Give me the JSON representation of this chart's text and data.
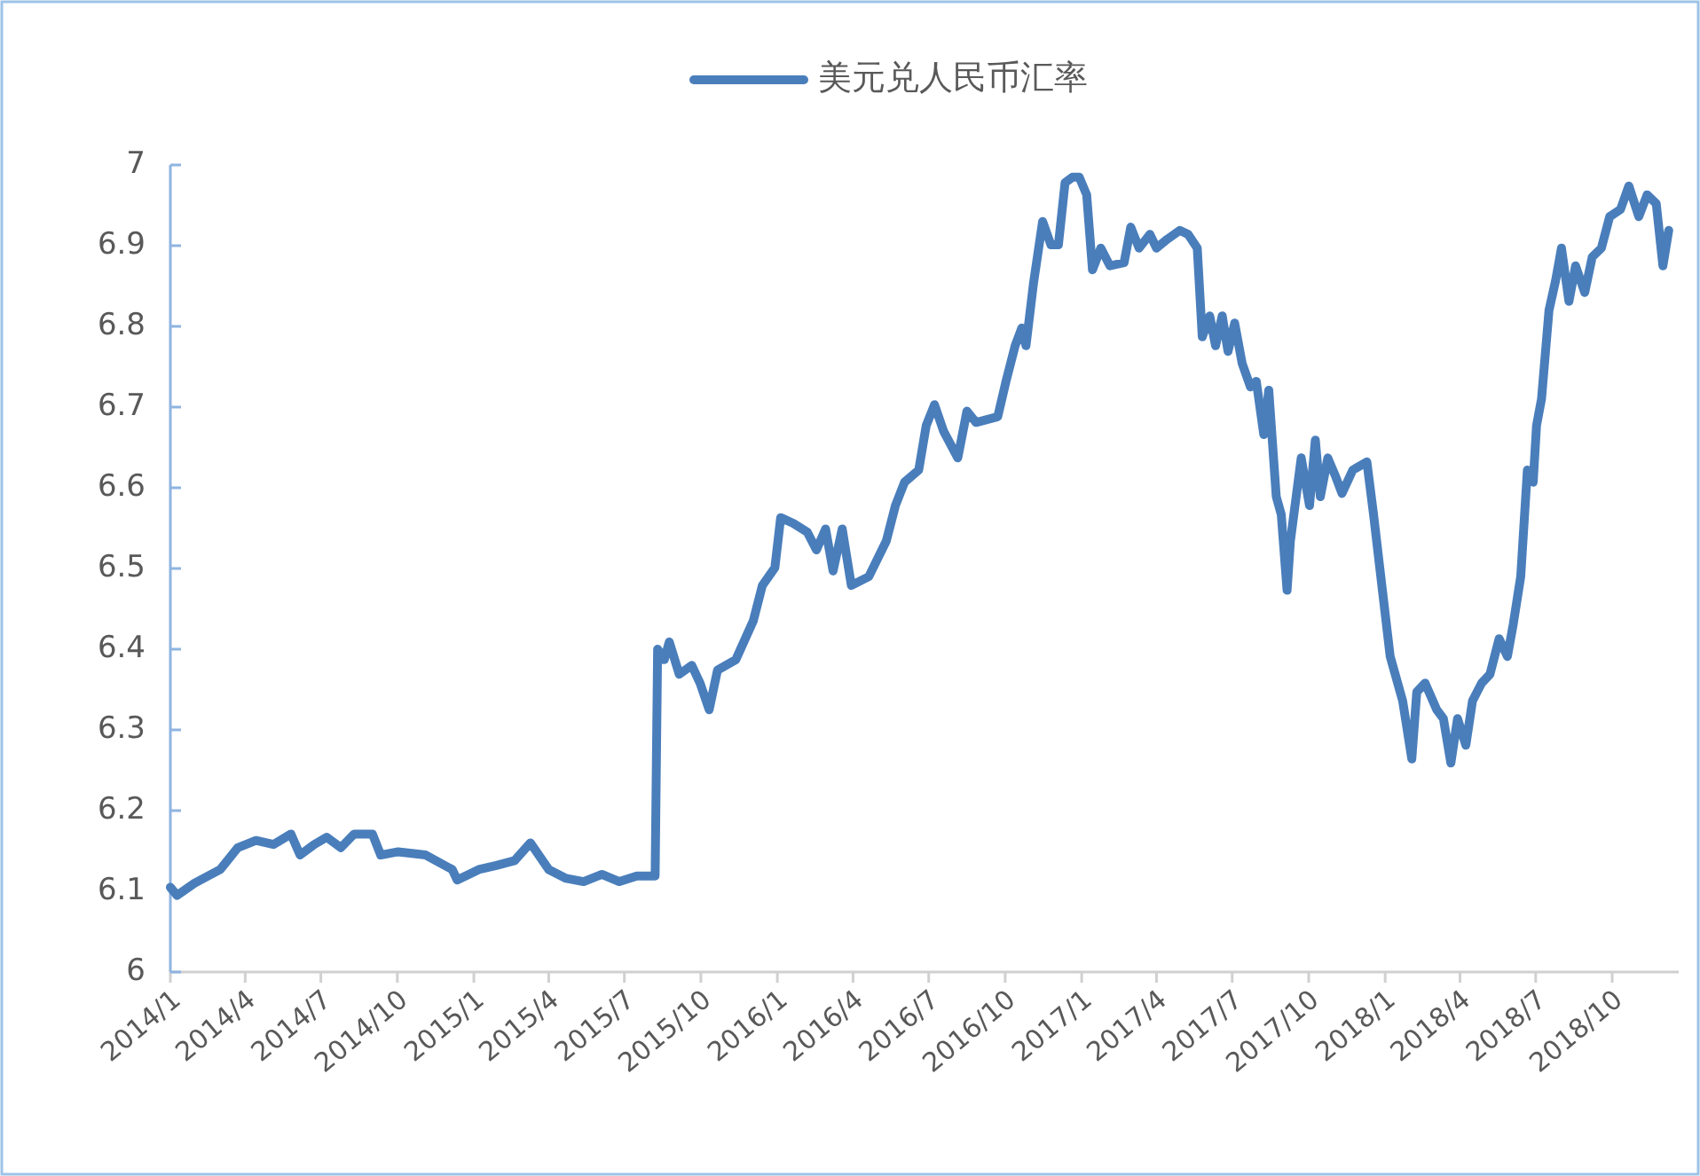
{
  "chart_data": {
    "type": "line",
    "legend": "top",
    "line_style": "solid",
    "grid": false,
    "xlim": [
      "2014-01-01",
      "2018-12-20"
    ],
    "xticks": [
      {
        "value": "2014-01-01",
        "label": "2014/1"
      },
      {
        "value": "2014-04-01",
        "label": "2014/4"
      },
      {
        "value": "2014-07-01",
        "label": "2014/7"
      },
      {
        "value": "2014-10-01",
        "label": "2014/10"
      },
      {
        "value": "2015-01-01",
        "label": "2015/1"
      },
      {
        "value": "2015-04-01",
        "label": "2015/4"
      },
      {
        "value": "2015-07-01",
        "label": "2015/7"
      },
      {
        "value": "2015-10-01",
        "label": "2015/10"
      },
      {
        "value": "2016-01-01",
        "label": "2016/1"
      },
      {
        "value": "2016-04-01",
        "label": "2016/4"
      },
      {
        "value": "2016-07-01",
        "label": "2016/7"
      },
      {
        "value": "2016-10-01",
        "label": "2016/10"
      },
      {
        "value": "2017-01-01",
        "label": "2017/1"
      },
      {
        "value": "2017-04-01",
        "label": "2017/4"
      },
      {
        "value": "2017-07-01",
        "label": "2017/7"
      },
      {
        "value": "2017-10-01",
        "label": "2017/10"
      },
      {
        "value": "2018-01-01",
        "label": "2018/1"
      },
      {
        "value": "2018-04-01",
        "label": "2018/4"
      },
      {
        "value": "2018-07-01",
        "label": "2018/7"
      },
      {
        "value": "2018-10-01",
        "label": "2018/10"
      }
    ],
    "ylim": [
      6,
      7
    ],
    "yticks": [
      6,
      6.1,
      6.2,
      6.3,
      6.4,
      6.5,
      6.6,
      6.7,
      6.8,
      6.9,
      7
    ],
    "x": [
      "2014-01-01",
      "2014-01-09",
      "2014-01-30",
      "2014-03-02",
      "2014-03-23",
      "2014-04-14",
      "2014-05-05",
      "2014-05-26",
      "2014-06-06",
      "2014-06-23",
      "2014-07-08",
      "2014-07-25",
      "2014-08-10",
      "2014-09-01",
      "2014-09-11",
      "2014-10-02",
      "2014-11-04",
      "2014-12-06",
      "2014-12-12",
      "2015-01-07",
      "2015-01-28",
      "2015-02-19",
      "2015-03-10",
      "2015-04-01",
      "2015-04-22",
      "2015-05-13",
      "2015-06-04",
      "2015-06-25",
      "2015-07-16",
      "2015-08-07",
      "2015-08-10",
      "2015-08-18",
      "2015-08-24",
      "2015-09-05",
      "2015-09-20",
      "2015-09-30",
      "2015-10-11",
      "2015-10-21",
      "2015-11-12",
      "2015-12-03",
      "2015-12-14",
      "2015-12-29",
      "2016-01-05",
      "2016-01-20",
      "2016-02-06",
      "2016-02-17",
      "2016-02-28",
      "2016-03-08",
      "2016-03-19",
      "2016-03-30",
      "2016-04-20",
      "2016-05-11",
      "2016-05-22",
      "2016-06-02",
      "2016-06-19",
      "2016-06-28",
      "2016-07-08",
      "2016-07-19",
      "2016-08-05",
      "2016-08-16",
      "2016-08-27",
      "2016-09-22",
      "2016-10-02",
      "2016-10-13",
      "2016-10-21",
      "2016-10-26",
      "2016-11-04",
      "2016-11-15",
      "2016-11-25",
      "2016-12-04",
      "2016-12-12",
      "2016-12-21",
      "2016-12-29",
      "2017-01-07",
      "2017-01-14",
      "2017-01-24",
      "2017-02-04",
      "2017-02-21",
      "2017-03-01",
      "2017-03-11",
      "2017-03-24",
      "2017-04-01",
      "2017-04-14",
      "2017-04-29",
      "2017-05-09",
      "2017-05-20",
      "2017-05-26",
      "2017-06-04",
      "2017-06-11",
      "2017-06-19",
      "2017-06-26",
      "2017-07-04",
      "2017-07-13",
      "2017-07-23",
      "2017-07-30",
      "2017-08-08",
      "2017-08-14",
      "2017-08-23",
      "2017-08-29",
      "2017-09-05",
      "2017-09-09",
      "2017-09-22",
      "2017-10-02",
      "2017-10-09",
      "2017-10-15",
      "2017-10-24",
      "2017-11-02",
      "2017-11-10",
      "2017-11-23",
      "2017-12-10",
      "2017-12-18",
      "2017-12-25",
      "2018-01-07",
      "2018-01-22",
      "2018-02-02",
      "2018-02-08",
      "2018-02-18",
      "2018-03-04",
      "2018-03-12",
      "2018-03-21",
      "2018-03-29",
      "2018-04-08",
      "2018-04-16",
      "2018-04-27",
      "2018-05-07",
      "2018-05-18",
      "2018-05-28",
      "2018-06-04",
      "2018-06-13",
      "2018-06-21",
      "2018-06-28",
      "2018-07-02",
      "2018-07-08",
      "2018-07-17",
      "2018-07-25",
      "2018-08-01",
      "2018-08-10",
      "2018-08-18",
      "2018-08-29",
      "2018-09-07",
      "2018-09-18",
      "2018-09-28",
      "2018-10-11",
      "2018-10-21",
      "2018-11-02",
      "2018-11-12",
      "2018-11-23",
      "2018-12-01",
      "2018-12-08"
    ],
    "series": [
      {
        "name": "美元兑人民币汇率",
        "color": "#4a7ebb",
        "values": [
          6.105,
          6.095,
          6.11,
          6.127,
          6.154,
          6.163,
          6.158,
          6.171,
          6.145,
          6.158,
          6.167,
          6.154,
          6.171,
          6.171,
          6.145,
          6.149,
          6.145,
          6.127,
          6.114,
          6.127,
          6.132,
          6.138,
          6.16,
          6.127,
          6.116,
          6.112,
          6.121,
          6.112,
          6.119,
          6.119,
          6.4,
          6.387,
          6.409,
          6.369,
          6.38,
          6.358,
          6.325,
          6.374,
          6.387,
          6.435,
          6.479,
          6.501,
          6.563,
          6.556,
          6.545,
          6.523,
          6.549,
          6.497,
          6.549,
          6.479,
          6.49,
          6.534,
          6.578,
          6.607,
          6.622,
          6.677,
          6.703,
          6.67,
          6.637,
          6.695,
          6.681,
          6.688,
          6.732,
          6.776,
          6.798,
          6.776,
          6.853,
          6.93,
          6.901,
          6.901,
          6.978,
          6.985,
          6.985,
          6.963,
          6.87,
          6.897,
          6.875,
          6.879,
          6.923,
          6.897,
          6.914,
          6.897,
          6.908,
          6.919,
          6.914,
          6.897,
          6.787,
          6.813,
          6.776,
          6.813,
          6.769,
          6.804,
          6.754,
          6.725,
          6.732,
          6.666,
          6.721,
          6.589,
          6.567,
          6.473,
          6.534,
          6.637,
          6.578,
          6.659,
          6.589,
          6.637,
          6.615,
          6.593,
          6.622,
          6.632,
          6.567,
          6.505,
          6.391,
          6.336,
          6.264,
          6.347,
          6.358,
          6.325,
          6.314,
          6.259,
          6.314,
          6.281,
          6.336,
          6.358,
          6.369,
          6.413,
          6.391,
          6.431,
          6.49,
          6.622,
          6.607,
          6.677,
          6.71,
          6.82,
          6.857,
          6.897,
          6.831,
          6.875,
          6.842,
          6.886,
          6.897,
          6.936,
          6.945,
          6.974,
          6.936,
          6.963,
          6.952,
          6.875,
          6.919
        ]
      }
    ]
  }
}
